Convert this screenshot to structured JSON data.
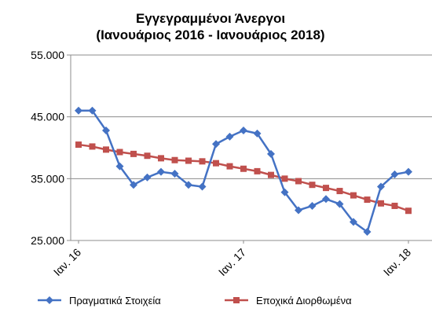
{
  "chart_data": {
    "type": "line",
    "title_lines": [
      "Εγγεγραμμένοι Άνεργοι",
      "(Ιανουάριος 2016 - Ιανουάριος 2018)"
    ],
    "xlabel": "",
    "ylabel": "",
    "ylim": [
      25000,
      55000
    ],
    "yticks": [
      25000,
      35000,
      45000,
      55000
    ],
    "ytick_labels": [
      "25.000",
      "35.000",
      "45.000",
      "55.000"
    ],
    "x_tick_labels": [
      {
        "index": 0,
        "label": "Ιαν. 16"
      },
      {
        "index": 12,
        "label": "Ιαν. 17"
      },
      {
        "index": 24,
        "label": "Ιαν. 18"
      }
    ],
    "grid": {
      "horizontal": true,
      "vertical": false
    },
    "legend_position": "bottom",
    "series": [
      {
        "name": "Πραγματικά Στοιχεία",
        "color": "#4472C4",
        "marker": "diamond",
        "values": [
          46000,
          46000,
          42800,
          37000,
          34000,
          35200,
          36100,
          35800,
          34000,
          33700,
          40600,
          41800,
          42800,
          42300,
          39000,
          32800,
          29900,
          30600,
          31700,
          30900,
          28000,
          26400,
          33700,
          35700,
          36100
        ]
      },
      {
        "name": "Εποχικά Διορθωμένα",
        "color": "#C0504D",
        "marker": "square",
        "values": [
          40500,
          40200,
          39700,
          39300,
          39000,
          38700,
          38300,
          38000,
          37900,
          37800,
          37500,
          37000,
          36600,
          36200,
          35600,
          35000,
          34600,
          34000,
          33500,
          33000,
          32300,
          31600,
          31000,
          30600,
          29800
        ]
      }
    ]
  }
}
